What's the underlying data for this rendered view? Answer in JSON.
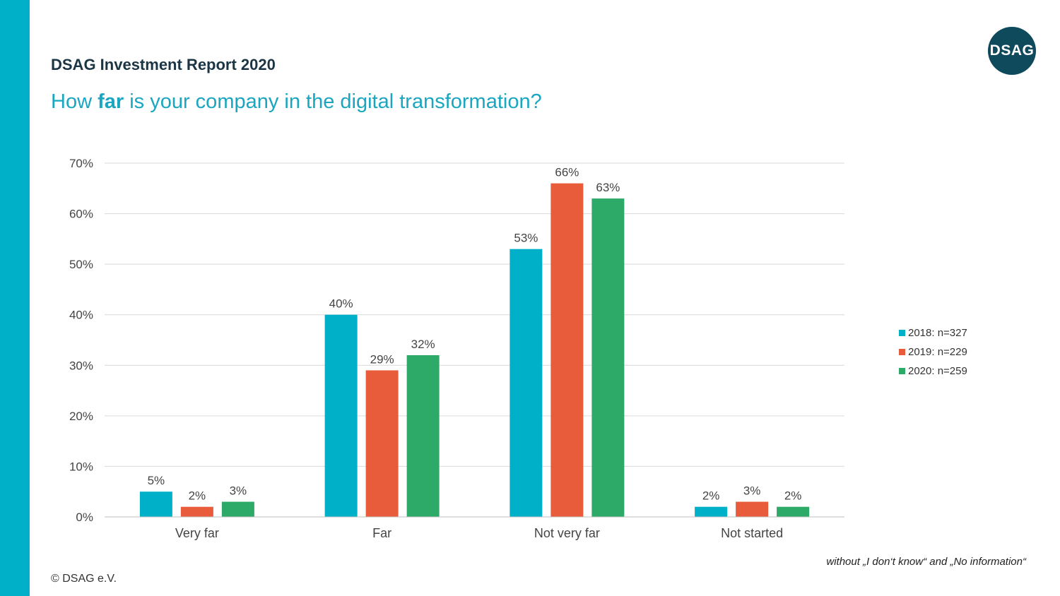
{
  "header": {
    "report_title": "DSAG Investment Report 2020",
    "question_pre": "How ",
    "question_bold": "far",
    "question_post": " is your company in the digital transformation?",
    "logo_text": "DSAG"
  },
  "footer": {
    "footnote": "without „I don‘t know“ and „No information“",
    "copyright": "© DSAG e.V."
  },
  "colors": {
    "accent": "#00b0c8",
    "logo_bg": "#0e4a5c",
    "question_text": "#1aa6c0",
    "grid": "#d9d9d9",
    "axis_text": "#444444"
  },
  "chart_data": {
    "type": "bar",
    "title": "",
    "xlabel": "",
    "ylabel": "",
    "ylim": [
      0,
      70
    ],
    "yticks": [
      0,
      10,
      20,
      30,
      40,
      50,
      60,
      70
    ],
    "ytick_labels": [
      "0%",
      "10%",
      "20%",
      "30%",
      "40%",
      "50%",
      "60%",
      "70%"
    ],
    "grid": true,
    "legend_position": "right",
    "categories": [
      "Very far",
      "Far",
      "Not very far",
      "Not started"
    ],
    "series": [
      {
        "name": "2018: n=327",
        "color": "#00b0c8",
        "values": [
          5,
          40,
          53,
          2
        ],
        "labels": [
          "5%",
          "40%",
          "53%",
          "2%"
        ]
      },
      {
        "name": "2019: n=229",
        "color": "#e85c3b",
        "values": [
          2,
          29,
          66,
          3
        ],
        "labels": [
          "2%",
          "29%",
          "66%",
          "3%"
        ]
      },
      {
        "name": "2020: n=259",
        "color": "#2daa67",
        "values": [
          3,
          32,
          63,
          2
        ],
        "labels": [
          "3%",
          "32%",
          "63%",
          "2%"
        ]
      }
    ]
  }
}
